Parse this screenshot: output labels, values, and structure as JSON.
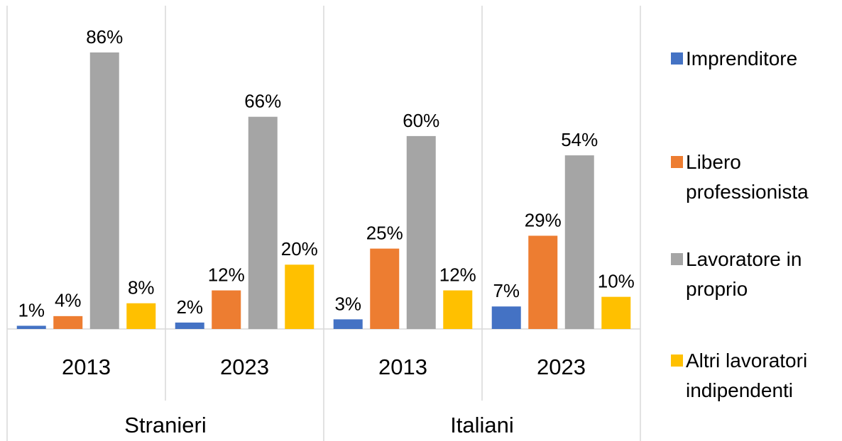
{
  "chart_data": {
    "type": "bar",
    "categories": [
      "2013",
      "2023",
      "2013",
      "2023"
    ],
    "groups": [
      {
        "name": "Stranieri",
        "span": 2
      },
      {
        "name": "Italiani",
        "span": 2
      }
    ],
    "series": [
      {
        "name": "Imprenditore",
        "color": "#4472c4",
        "values": [
          1,
          2,
          3,
          7
        ],
        "value_labels": [
          "1%",
          "2%",
          "3%",
          "7%"
        ]
      },
      {
        "name": "Libero professionista",
        "color": "#ed7d31",
        "values": [
          4,
          12,
          25,
          29
        ],
        "value_labels": [
          "4%",
          "12%",
          "25%",
          "29%"
        ]
      },
      {
        "name": "Lavoratore in proprio",
        "color": "#a5a5a5",
        "values": [
          86,
          66,
          60,
          54
        ],
        "value_labels": [
          "86%",
          "66%",
          "60%",
          "54%"
        ]
      },
      {
        "name": "Altri lavoratori indipendenti",
        "color": "#ffc000",
        "values": [
          8,
          20,
          12,
          10
        ],
        "value_labels": [
          "8%",
          "20%",
          "12%",
          "10%"
        ]
      }
    ],
    "legend": "right"
  }
}
